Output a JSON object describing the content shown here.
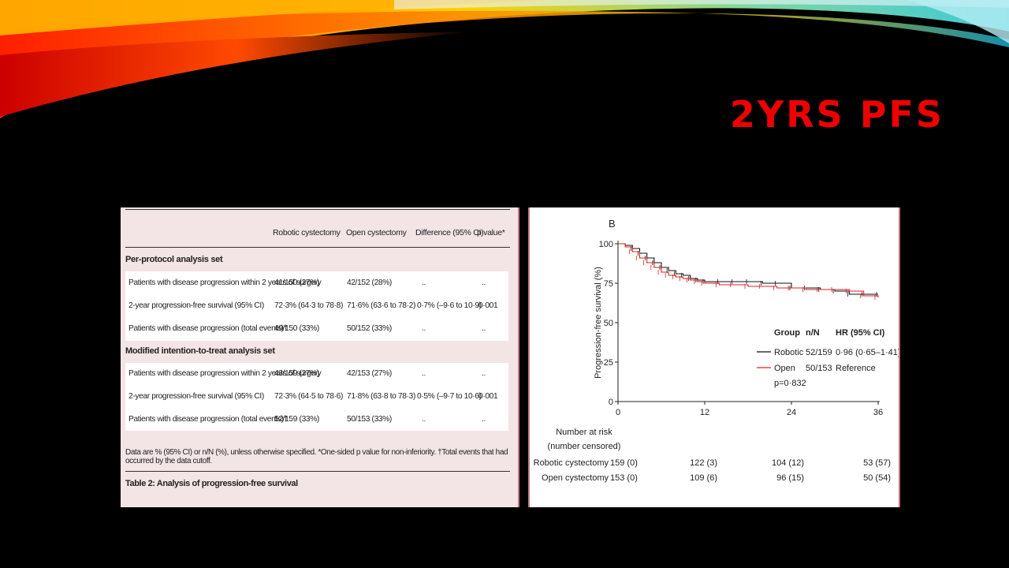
{
  "slide": {
    "title": "2YRS PFS",
    "colors": {
      "background": "#000000",
      "title": "#ee0000",
      "accent_border": "#c47988"
    }
  },
  "table": {
    "columns": [
      "Robotic cystectomy",
      "Open cystectomy",
      "Difference (95% CI)",
      "p value*"
    ],
    "sections": [
      {
        "title": "Per-protocol analysis set",
        "rows": [
          {
            "label": "Patients with disease progression within 2 years of surgery",
            "robotic": "41/150 (27%)",
            "open": "42/152 (28%)",
            "difference": "..",
            "p": ".."
          },
          {
            "label": "2-year progression-free survival (95% CI)",
            "robotic": "72·3% (64·3 to 78·8)",
            "open": "71·6% (63·6 to 78·2)",
            "difference": "0·7% (–9·6 to 10·9)",
            "p": "0·001"
          },
          {
            "label": "Patients with disease progression (total events)†",
            "robotic": "49/150 (33%)",
            "open": "50/152 (33%)",
            "difference": "..",
            "p": ".."
          }
        ]
      },
      {
        "title": "Modified intention-to-treat analysis set",
        "rows": [
          {
            "label": "Patients with disease progression within 2 years of surgery",
            "robotic": "43/159 (27%)",
            "open": "42/153 (27%)",
            "difference": "..",
            "p": ".."
          },
          {
            "label": "2-year progression-free survival (95% CI)",
            "robotic": "72·3% (64·5 to 78·6)",
            "open": "71·8% (63·8 to 78·3)",
            "difference": "0·5% (–9·7 to 10·6)",
            "p": "0·001"
          },
          {
            "label": "Patients with disease progression (total events)†",
            "robotic": "52/159 (33%)",
            "open": "50/153 (33%)",
            "difference": "..",
            "p": ".."
          }
        ]
      }
    ],
    "footnote": "Data are % (95% CI) or n/N (%), unless otherwise specified. *One-sided p value for non-inferiority. †Total events that had occurred by the data cutoff.",
    "caption": "Table 2: Analysis of progression-free survival"
  },
  "chart_data": {
    "type": "line",
    "panel_label": "B",
    "ylabel": "Progression-free survival (%)",
    "xlabel": "",
    "x_ticks": [
      0,
      12,
      24,
      36
    ],
    "y_ticks": [
      0,
      25,
      50,
      75,
      100
    ],
    "xlim": [
      0,
      36
    ],
    "ylim": [
      0,
      100
    ],
    "series": [
      {
        "name": "Robotic",
        "color": "#111111",
        "x": [
          0,
          1,
          2,
          3,
          4,
          5,
          6,
          7,
          8,
          9,
          10,
          11,
          12,
          14,
          16,
          18,
          20,
          22,
          24,
          26,
          28,
          30,
          32,
          34,
          36
        ],
        "y": [
          100,
          99,
          97,
          94,
          91,
          88,
          85,
          83,
          81,
          80,
          78,
          77,
          76,
          76,
          76,
          76,
          75,
          75,
          72,
          72,
          71,
          70,
          68,
          68,
          68
        ]
      },
      {
        "name": "Open",
        "color": "#dd2222",
        "x": [
          0,
          1,
          2,
          3,
          4,
          5,
          6,
          7,
          8,
          9,
          10,
          11,
          12,
          14,
          16,
          18,
          20,
          22,
          24,
          26,
          28,
          30,
          32,
          34,
          36
        ],
        "y": [
          100,
          98,
          95,
          91,
          88,
          85,
          82,
          80,
          79,
          78,
          77,
          76,
          75,
          74,
          74,
          73,
          73,
          72,
          72,
          71,
          71,
          71,
          70,
          67,
          66
        ]
      }
    ],
    "legend": {
      "headers": [
        "Group",
        "n/N",
        "HR (95% CI)"
      ],
      "rows": [
        {
          "group": "Robotic",
          "n": "52/159",
          "hr": "0·96 (0·65–1·41)"
        },
        {
          "group": "Open",
          "n": "50/153",
          "hr": "Reference"
        }
      ],
      "pvalue": "p=0·832"
    },
    "risk_table": {
      "title_line1": "Number at risk",
      "title_line2": "(number censored)",
      "rows": [
        {
          "label": "Robotic cystectomy",
          "values": [
            "159 (0)",
            "122 (3)",
            "104 (12)",
            "53 (57)"
          ]
        },
        {
          "label": "Open cystectomy",
          "values": [
            "153 (0)",
            "109 (6)",
            "96 (15)",
            "50 (54)"
          ]
        }
      ]
    }
  }
}
